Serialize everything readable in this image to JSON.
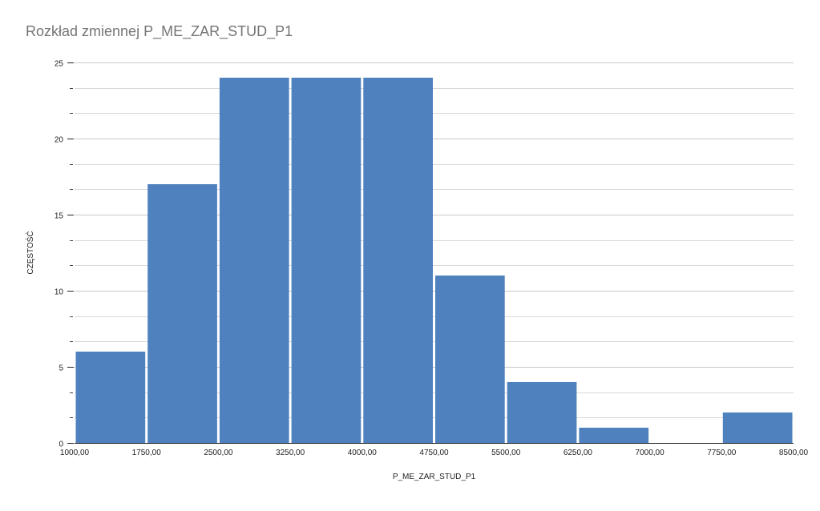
{
  "chart_data": {
    "type": "bar",
    "title": "Rozkład zmiennej P_ME_ZAR_STUD_P1",
    "xlabel": "P_ME_ZAR_STUD_P1",
    "ylabel": "CZĘSTOŚĆ",
    "x_ticks": [
      "1000,00",
      "1750,00",
      "2500,00",
      "3250,00",
      "4000,00",
      "4750,00",
      "5500,00",
      "6250,00",
      "7000,00",
      "7750,00",
      "8500,00"
    ],
    "x_tick_values": [
      1000,
      1750,
      2500,
      3250,
      4000,
      4750,
      5500,
      6250,
      7000,
      7750,
      8500
    ],
    "bins": [
      {
        "from": 1000,
        "to": 1750,
        "value": 6
      },
      {
        "from": 1750,
        "to": 2500,
        "value": 17
      },
      {
        "from": 2500,
        "to": 3250,
        "value": 24
      },
      {
        "from": 3250,
        "to": 4000,
        "value": 24
      },
      {
        "from": 4000,
        "to": 4750,
        "value": 24
      },
      {
        "from": 4750,
        "to": 5500,
        "value": 11
      },
      {
        "from": 5500,
        "to": 6250,
        "value": 4
      },
      {
        "from": 6250,
        "to": 7000,
        "value": 1
      },
      {
        "from": 7000,
        "to": 7750,
        "value": 0
      },
      {
        "from": 7750,
        "to": 8500,
        "value": 2
      }
    ],
    "y_ticks": [
      "0",
      "5",
      "10",
      "15",
      "20",
      "25"
    ],
    "y_tick_values": [
      0,
      5,
      10,
      15,
      20,
      25
    ],
    "xlim": [
      1000,
      8500
    ],
    "ylim": [
      0,
      25
    ],
    "y_minor_step": 1.6667,
    "grid": true,
    "bar_color": "#4e81bd",
    "grid_color": "#d9d9d9",
    "title_color": "#757575"
  }
}
